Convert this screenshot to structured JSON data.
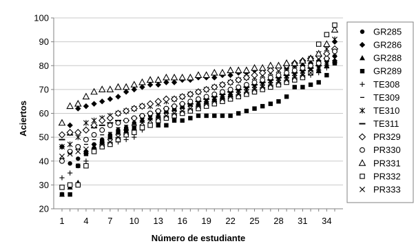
{
  "chart_data": {
    "type": "scatter",
    "xlabel": "Número de estudiante",
    "ylabel": "Aciertos",
    "xlim": [
      1,
      35
    ],
    "ylim": [
      20,
      100
    ],
    "xticks": [
      1,
      4,
      7,
      10,
      13,
      16,
      19,
      22,
      25,
      28,
      31,
      34
    ],
    "yticks": [
      20,
      30,
      40,
      50,
      60,
      70,
      80,
      90,
      100
    ],
    "grid": "horizontal",
    "legend_position": "right",
    "series": [
      {
        "name": "GR285",
        "marker": "circle-filled",
        "values": [
          26,
          39,
          41,
          44,
          47,
          49,
          51,
          53,
          54,
          56,
          58,
          59,
          60,
          61,
          62,
          63,
          64,
          65,
          66,
          67,
          68,
          69,
          70,
          71,
          72,
          73,
          74,
          75,
          76,
          77,
          78,
          79,
          80,
          82,
          84
        ]
      },
      {
        "name": "GR286",
        "marker": "diamond-filled",
        "values": [
          46,
          55,
          62,
          63,
          64,
          65,
          66,
          67,
          69,
          70,
          71,
          72,
          72,
          73,
          73,
          74,
          74,
          75,
          75,
          75,
          76,
          76,
          77,
          77,
          78,
          78,
          78,
          79,
          79,
          80,
          80,
          81,
          82,
          85,
          90
        ]
      },
      {
        "name": "GR288",
        "marker": "triangle-filled",
        "values": [
          26,
          29,
          31,
          44,
          46,
          48,
          50,
          52,
          54,
          56,
          57,
          58,
          59,
          61,
          62,
          63,
          64,
          64,
          65,
          66,
          67,
          68,
          68,
          69,
          70,
          71,
          72,
          73,
          74,
          75,
          76,
          77,
          78,
          80,
          82
        ]
      },
      {
        "name": "GR289",
        "marker": "square-filled",
        "values": [
          26,
          26,
          38,
          43,
          45,
          48,
          50,
          52,
          53,
          54,
          54,
          55,
          55,
          55,
          57,
          57,
          58,
          59,
          59,
          59,
          59,
          59,
          60,
          61,
          62,
          63,
          64,
          65,
          67,
          71,
          71,
          72,
          73,
          76,
          81
        ]
      },
      {
        "name": "TE308",
        "marker": "plus",
        "values": [
          33,
          35,
          38,
          40,
          44,
          46,
          47,
          48,
          49,
          50,
          53,
          55,
          57,
          58,
          59,
          60,
          61,
          62,
          63,
          64,
          65,
          66,
          67,
          68,
          69,
          70,
          71,
          72,
          73,
          74,
          75,
          76,
          77,
          79,
          82
        ]
      },
      {
        "name": "TE309",
        "marker": "dash",
        "values": [
          41,
          43,
          45,
          47,
          49,
          51,
          52,
          54,
          55,
          56,
          57,
          58,
          59,
          60,
          61,
          62,
          63,
          64,
          65,
          66,
          67,
          68,
          69,
          70,
          71,
          72,
          73,
          74,
          75,
          76,
          77,
          78,
          79,
          81,
          84
        ]
      },
      {
        "name": "TE310",
        "marker": "star",
        "values": [
          46,
          47,
          50,
          56,
          57,
          58,
          59,
          60,
          61,
          62,
          63,
          63,
          64,
          65,
          66,
          67,
          68,
          69,
          70,
          71,
          72,
          73,
          74,
          75,
          75,
          76,
          77,
          78,
          79,
          80,
          81,
          83,
          85,
          87,
          91
        ]
      },
      {
        "name": "TE311",
        "marker": "dash-long",
        "values": [
          49,
          51,
          52,
          53,
          54,
          55,
          56,
          57,
          57,
          58,
          59,
          60,
          61,
          62,
          63,
          64,
          64,
          65,
          66,
          67,
          68,
          69,
          70,
          71,
          72,
          73,
          74,
          75,
          76,
          77,
          78,
          79,
          80,
          83,
          87
        ]
      },
      {
        "name": "PR329",
        "marker": "diamond-open",
        "values": [
          51,
          52,
          52,
          53,
          55,
          57,
          58,
          60,
          61,
          62,
          63,
          64,
          65,
          66,
          66,
          67,
          68,
          69,
          70,
          71,
          72,
          73,
          74,
          75,
          76,
          77,
          78,
          79,
          80,
          81,
          82,
          83,
          84,
          85,
          87
        ]
      },
      {
        "name": "PR330",
        "marker": "circle-open",
        "values": [
          40,
          44,
          46,
          49,
          51,
          53,
          55,
          56,
          57,
          58,
          59,
          60,
          61,
          62,
          63,
          64,
          65,
          66,
          67,
          68,
          69,
          70,
          71,
          72,
          73,
          74,
          75,
          76,
          77,
          78,
          79,
          80,
          81,
          83,
          86
        ]
      },
      {
        "name": "PR331",
        "marker": "triangle-open",
        "values": [
          56,
          63,
          64,
          67,
          69,
          70,
          70,
          71,
          71,
          72,
          73,
          74,
          74,
          75,
          75,
          75,
          75,
          76,
          76,
          77,
          77,
          78,
          78,
          78,
          79,
          79,
          80,
          80,
          81,
          81,
          82,
          83,
          85,
          89,
          95
        ]
      },
      {
        "name": "PR332",
        "marker": "square-open",
        "values": [
          29,
          30,
          30,
          38,
          44,
          46,
          47,
          49,
          51,
          52,
          54,
          55,
          57,
          58,
          59,
          60,
          61,
          62,
          63,
          64,
          65,
          66,
          67,
          68,
          69,
          70,
          71,
          72,
          73,
          74,
          75,
          77,
          89,
          93,
          97
        ]
      },
      {
        "name": "PR333",
        "marker": "x",
        "values": [
          42,
          43,
          44,
          45,
          46,
          47,
          48,
          50,
          52,
          54,
          56,
          57,
          58,
          59,
          60,
          61,
          62,
          63,
          64,
          65,
          66,
          67,
          68,
          69,
          70,
          71,
          72,
          73,
          74,
          75,
          76,
          77,
          79,
          81,
          83
        ]
      }
    ]
  }
}
